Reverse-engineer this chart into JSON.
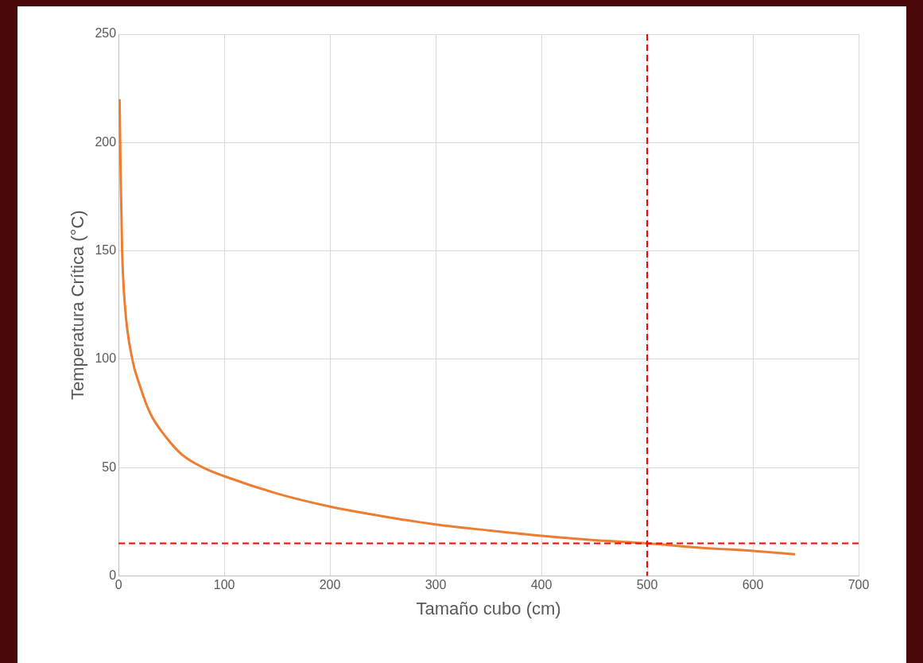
{
  "chart_data": {
    "type": "line",
    "xlabel": "Tamaño cubo (cm)",
    "ylabel": "Temperatura Crítica (°C)",
    "xlim": [
      0,
      700
    ],
    "xticks": [
      0,
      100,
      200,
      300,
      400,
      500,
      600,
      700
    ],
    "ylim": [
      0,
      250
    ],
    "yticks": [
      0,
      50,
      100,
      150,
      200,
      250
    ],
    "grid": true,
    "legend": false,
    "marker": "none",
    "line_style": "solid",
    "series": [
      {
        "color": "#ed7d31",
        "x": [
          1,
          2,
          3.4,
          6,
          13,
          20,
          30,
          45,
          60,
          80,
          100,
          150,
          200,
          250,
          300,
          350,
          400,
          450,
          500,
          550,
          600,
          640
        ],
        "values": [
          220,
          185,
          150,
          125,
          100,
          88,
          75,
          64,
          56,
          50,
          46,
          38,
          32,
          27.5,
          23.7,
          21,
          18.5,
          16.5,
          15,
          13,
          11.5,
          10
        ]
      }
    ],
    "ref_lines": [
      {
        "axis": "y",
        "value": 15,
        "color": "#ff0000",
        "line_style": "dashed"
      },
      {
        "axis": "x",
        "value": 500,
        "color": "#ff0000",
        "line_style": "dashed"
      }
    ]
  }
}
